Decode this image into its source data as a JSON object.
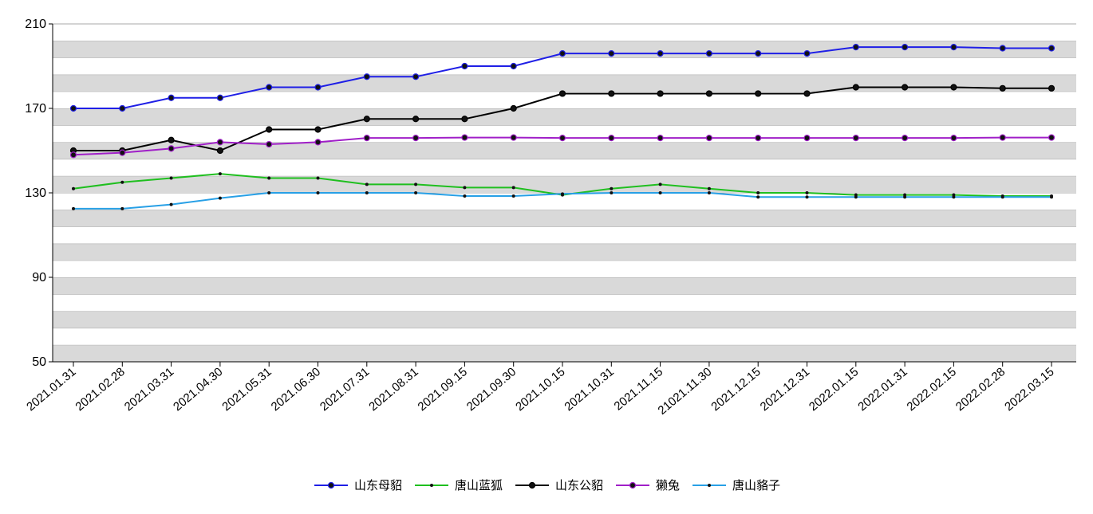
{
  "chart_data": {
    "type": "line",
    "ylim": [
      50,
      210
    ],
    "yticks": [
      50,
      90,
      130,
      170,
      210
    ],
    "grid": "alternating horizontal bands",
    "legend_position": "bottom-center",
    "x": [
      "2021.01.31",
      "2021.02.28",
      "2021.03.31",
      "2021.04.30",
      "2021.05.31",
      "2021.06.30",
      "2021.07.31",
      "2021.08.31",
      "2021.09.15",
      "2021.09.30",
      "2021.10.15",
      "2021.10.31",
      "2021.11.15",
      "21021.11.30",
      "2021.12.15",
      "2021.12.31",
      "2022.01.15",
      "2022.01.31",
      "2022.02.15",
      "2022.02.28",
      "2022.03.15"
    ],
    "series": [
      {
        "name": "山东母貂",
        "color": "#1f1fe6",
        "marker": "large",
        "values": [
          170,
          170,
          175,
          175,
          180,
          180,
          185,
          185,
          190,
          190,
          196,
          196,
          196,
          196,
          196,
          196,
          199,
          199,
          199,
          198.5,
          198.5
        ]
      },
      {
        "name": "唐山蓝狐",
        "color": "#1fbf1f",
        "marker": "small",
        "values": [
          132,
          135,
          137,
          139,
          137,
          137,
          134,
          134,
          132.5,
          132.5,
          129,
          132,
          134,
          132,
          130,
          130,
          129,
          129,
          129,
          128.5,
          128.5
        ]
      },
      {
        "name": "山东公貂",
        "color": "#000000",
        "marker": "large",
        "values": [
          150,
          150,
          155,
          150,
          160,
          160,
          165,
          165,
          165,
          170,
          177,
          177,
          177,
          177,
          177,
          177,
          180,
          180,
          180,
          179.5,
          179.5
        ]
      },
      {
        "name": "獭兔",
        "color": "#a01fc8",
        "marker": "large",
        "values": [
          148,
          149,
          151,
          154,
          153,
          154,
          156,
          156,
          156.2,
          156.2,
          156,
          156,
          156,
          156,
          156,
          156,
          156,
          156,
          156,
          156.2,
          156.2
        ]
      },
      {
        "name": "唐山貉子",
        "color": "#28a0e6",
        "marker": "small",
        "values": [
          122.5,
          122.5,
          124.5,
          127.5,
          130,
          130,
          130,
          130,
          128.5,
          128.5,
          129.5,
          130,
          130,
          130,
          128,
          128,
          128,
          128,
          128,
          128,
          128
        ]
      }
    ]
  }
}
